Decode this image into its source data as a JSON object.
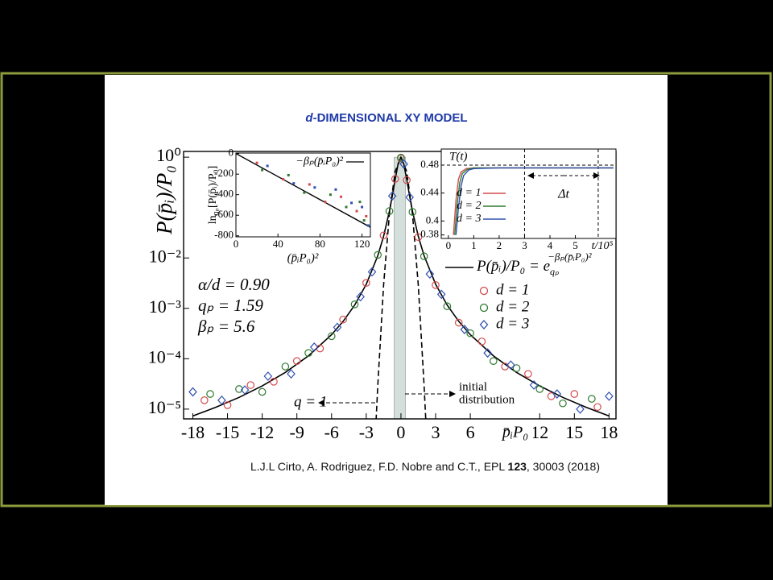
{
  "slide": {
    "title_italic": "d",
    "title": "-DIMENSIONAL XY MODEL",
    "citation": {
      "authors": "L.J.L Cirto, A. Rodriguez, F.D. Nobre and C.T., EPL ",
      "volume": "123",
      "rest": ", 30003 (2018)"
    }
  },
  "chart_data": [
    {
      "type": "scatter",
      "y_label": "P(p̄ᵢ)/P₀",
      "x_label": "p̄ᵢP₀",
      "log_y": true,
      "xlim": [
        -18.8,
        18.6
      ],
      "ylim": [
        6.4e-06,
        1.3
      ],
      "xticks": [
        -18,
        -15,
        -12,
        -9,
        -6,
        -3,
        0,
        3,
        6,
        12,
        15,
        18
      ],
      "yticks": [
        {
          "value": 1,
          "label": "10⁰"
        },
        {
          "value": 0.01,
          "label": "10⁻²"
        },
        {
          "value": 0.001,
          "label": "10⁻³"
        },
        {
          "value": 0.0001,
          "label": "10⁻⁴"
        },
        {
          "value": 1e-05,
          "label": "10⁻⁵"
        }
      ],
      "annotations": [
        "α/d = 0.90",
        "qₚ = 1.59",
        "βₚ = 5.6"
      ],
      "band": {
        "x": [
          -0.6,
          0.4
        ],
        "label": [
          "initial",
          "distribution"
        ],
        "color": "#d3dfdb"
      },
      "series": [
        {
          "name": "P(p̄ᵢ)/P₀ = e",
          "name_sub": "qₚ",
          "name_sup": "−βₚ(p̄ᵢP₀)²",
          "kind": "line",
          "color": "#000000",
          "x": [
            -18,
            -16,
            -14,
            -12,
            -10,
            -8,
            -6,
            -5,
            -4,
            -3,
            -2,
            -1.5,
            -1,
            -0.75,
            -0.5,
            -0.25,
            0,
            0.25,
            0.5,
            0.75,
            1,
            1.5,
            2,
            3,
            4,
            5,
            6,
            8,
            10,
            12,
            14,
            16,
            18
          ],
          "values": [
            7.3e-06,
            1.09e-05,
            1.71e-05,
            2.89e-05,
            5.35e-05,
            0.000114,
            0.0003,
            0.000552,
            0.00116,
            0.00301,
            0.0111,
            0.027,
            0.0843,
            0.169,
            0.36,
            0.727,
            1,
            0.727,
            0.36,
            0.169,
            0.0843,
            0.027,
            0.0111,
            0.00301,
            0.00116,
            0.000552,
            0.0003,
            0.000114,
            5.35e-05,
            2.89e-05,
            1.71e-05,
            1.09e-05,
            7.3e-06
          ]
        },
        {
          "name": "q = 1",
          "kind": "dashed",
          "color": "#000000",
          "x": [
            -2.15,
            -2,
            -1.5,
            -1,
            -0.5,
            0,
            0.5,
            1,
            1.5,
            2,
            2.15
          ],
          "values": [
            6e-06,
            3e-05,
            0.0029,
            0.074,
            0.52,
            1,
            0.52,
            0.074,
            0.0029,
            3e-05,
            6e-06
          ]
        },
        {
          "name": "d = 1",
          "kind": "scatter",
          "marker": "circle",
          "color": "#d44a4a",
          "x": [
            -17,
            -15,
            -13,
            -11,
            -9,
            -7,
            -5,
            -3,
            -1.5,
            -0.5,
            0,
            0.5,
            1.5,
            3,
            5,
            7,
            9,
            11,
            13,
            15,
            17
          ],
          "values": [
            1.5e-05,
            1.2e-05,
            3e-05,
            3.5e-05,
            9e-05,
            0.00016,
            0.0006,
            0.0032,
            0.028,
            0.37,
            0.95,
            0.35,
            0.026,
            0.0029,
            0.00052,
            0.00022,
            7e-05,
            5e-05,
            1.8e-05,
            2e-05,
            1.1e-05
          ]
        },
        {
          "name": "d = 2",
          "kind": "scatter",
          "marker": "circle",
          "color": "#2e7a2e",
          "x": [
            -16.5,
            -14,
            -12,
            -10,
            -8,
            -6,
            -4,
            -2,
            -1,
            0,
            1,
            2,
            4,
            6,
            8,
            10,
            12,
            14,
            16.5
          ],
          "values": [
            2e-05,
            2.5e-05,
            2.2e-05,
            7e-05,
            0.00013,
            0.00028,
            0.0012,
            0.0115,
            0.085,
            0.98,
            0.082,
            0.0108,
            0.0011,
            0.00032,
            9e-05,
            6.5e-05,
            2.5e-05,
            1.3e-05,
            1.6e-05
          ]
        },
        {
          "name": "d = 3",
          "kind": "scatter",
          "marker": "diamond",
          "color": "#3050b0",
          "x": [
            -18,
            -15.5,
            -13.5,
            -11.5,
            -9.5,
            -7.5,
            -5.5,
            -3.5,
            -2.5,
            -0.75,
            0.25,
            0.75,
            2.5,
            3.5,
            5.5,
            7.5,
            9.5,
            11.5,
            13.5,
            15.5,
            18
          ],
          "values": [
            2.2e-05,
            1.5e-05,
            2.4e-05,
            4.5e-05,
            5e-05,
            0.00017,
            0.00042,
            0.0017,
            0.0053,
            0.17,
            0.73,
            0.16,
            0.0048,
            0.0019,
            0.00038,
            0.00013,
            7.5e-05,
            3e-05,
            2e-05,
            1e-05,
            1.8e-05
          ]
        }
      ]
    },
    {
      "type": "scatter",
      "y_label": "ln",
      "y_label_sub": "qₚ",
      "y_label_rest": "[P(p̄ᵢ)/P₀]",
      "x_label": "(p̄ᵢP₀)²",
      "xlim": [
        0,
        128
      ],
      "ylim": [
        -810,
        5
      ],
      "xticks": [
        0,
        40,
        80,
        120
      ],
      "yticks": [
        0,
        -200,
        -400,
        -600,
        -800
      ],
      "series": [
        {
          "name": "−βₚ(p̄ᵢP₀)²",
          "kind": "line",
          "color": "#000000",
          "x": [
            0,
            128
          ],
          "values": [
            0,
            -716.8
          ]
        },
        {
          "name": "d = 1",
          "kind": "scatter",
          "marker": "dot",
          "color": "#d44a4a",
          "x": [
            20,
            45,
            70,
            85,
            100,
            115,
            124
          ],
          "values": [
            -90,
            -250,
            -300,
            -470,
            -420,
            -560,
            -610
          ]
        },
        {
          "name": "d = 2",
          "kind": "scatter",
          "marker": "dot",
          "color": "#2e7a2e",
          "x": [
            25,
            50,
            65,
            90,
            105,
            118,
            122
          ],
          "values": [
            -160,
            -210,
            -380,
            -400,
            -520,
            -470,
            -650
          ]
        },
        {
          "name": "d = 3",
          "kind": "scatter",
          "marker": "dot",
          "color": "#3050b0",
          "x": [
            30,
            55,
            75,
            95,
            110,
            120,
            126
          ],
          "values": [
            -120,
            -290,
            -330,
            -350,
            -480,
            -520,
            -700
          ]
        }
      ]
    },
    {
      "type": "line",
      "y_label": "T(t)",
      "x_label": "t/10⁵",
      "annotation": "Δt",
      "xlim": [
        -0.28,
        6.6
      ],
      "ylim": [
        0.375,
        0.503
      ],
      "xticks": [
        0,
        1,
        2,
        3,
        4,
        5
      ],
      "yticks": [
        0.38,
        0.4,
        0.44,
        0.48
      ],
      "x_markers": [
        3,
        5.9
      ],
      "y_marker": 0.48,
      "series": [
        {
          "name": "d = 1",
          "kind": "line",
          "color": "#d44a4a",
          "x": [
            0.2,
            0.3,
            0.4,
            0.5,
            0.7,
            1,
            2,
            3,
            4,
            5,
            6.5
          ],
          "values": [
            0.38,
            0.43,
            0.46,
            0.47,
            0.475,
            0.476,
            0.476,
            0.476,
            0.476,
            0.476,
            0.476
          ]
        },
        {
          "name": "d = 2",
          "kind": "line",
          "color": "#2e7a2e",
          "x": [
            0.25,
            0.35,
            0.45,
            0.55,
            0.75,
            1,
            2,
            3,
            4,
            5,
            6.5
          ],
          "values": [
            0.38,
            0.425,
            0.455,
            0.468,
            0.474,
            0.476,
            0.476,
            0.476,
            0.476,
            0.476,
            0.476
          ]
        },
        {
          "name": "d = 3",
          "kind": "line",
          "color": "#3050b0",
          "x": [
            0.3,
            0.4,
            0.5,
            0.6,
            0.8,
            1,
            2,
            3,
            4,
            5,
            6.5
          ],
          "values": [
            0.38,
            0.42,
            0.45,
            0.465,
            0.473,
            0.475,
            0.476,
            0.476,
            0.476,
            0.476,
            0.476
          ]
        }
      ]
    }
  ]
}
